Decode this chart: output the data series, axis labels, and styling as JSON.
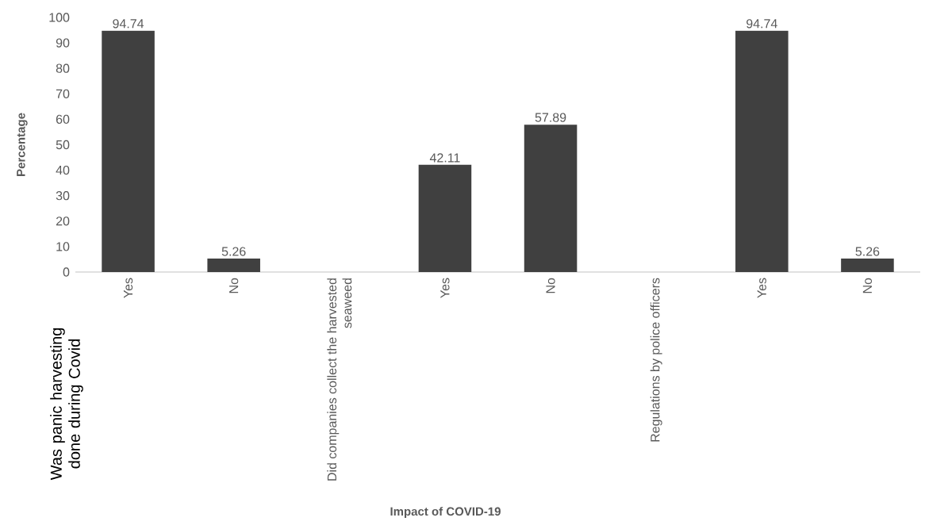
{
  "chart_data": {
    "type": "bar",
    "categories": [
      "Yes",
      "No",
      "Did companies collect the harvested seaweed",
      "Yes",
      "No",
      "Regulations by police officers",
      "Yes",
      "No"
    ],
    "values": [
      94.74,
      5.26,
      null,
      42.11,
      57.89,
      null,
      94.74,
      5.26
    ],
    "color": "#404040",
    "ylim": [
      0,
      100
    ],
    "yticks": [
      0,
      10,
      20,
      30,
      40,
      50,
      60,
      70,
      80,
      90,
      100
    ],
    "data_labels": true,
    "xlabel": "Impact of COVID-19",
    "ylabel": "Percentage",
    "annotations": [
      "Was panic harvesting done during Covid"
    ]
  }
}
